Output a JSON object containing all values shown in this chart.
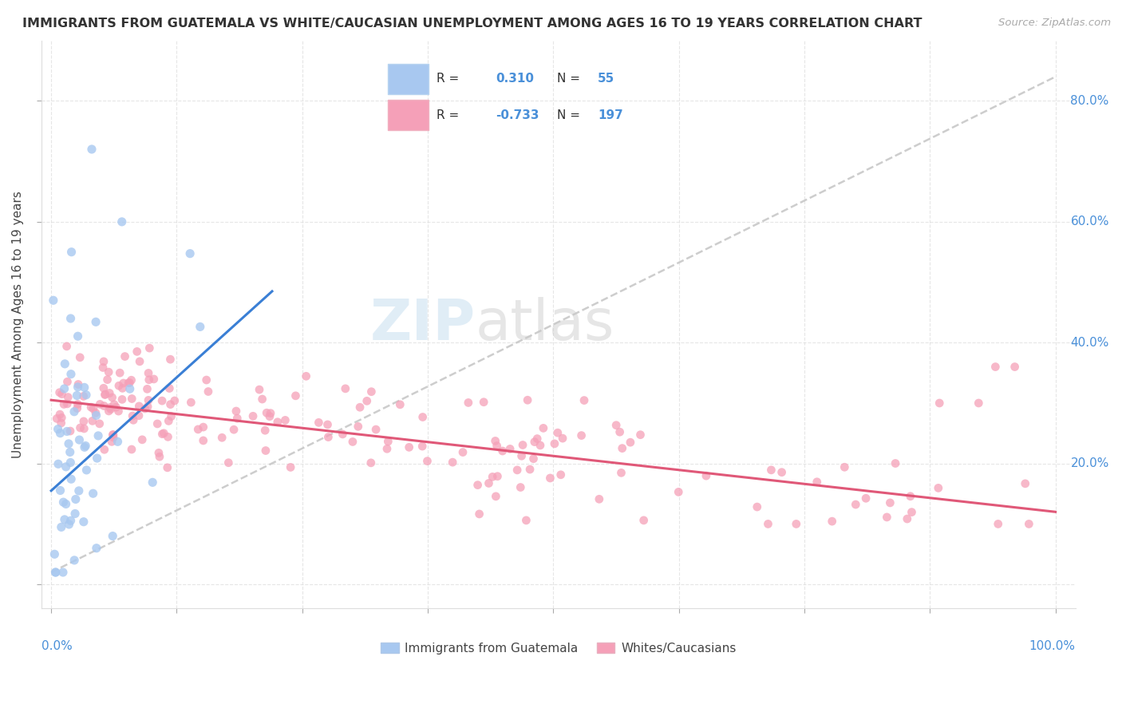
{
  "title": "IMMIGRANTS FROM GUATEMALA VS WHITE/CAUCASIAN UNEMPLOYMENT AMONG AGES 16 TO 19 YEARS CORRELATION CHART",
  "source": "Source: ZipAtlas.com",
  "ylabel": "Unemployment Among Ages 16 to 19 years",
  "legend1_r": "0.310",
  "legend1_n": "55",
  "legend2_r": "-0.733",
  "legend2_n": "197",
  "watermark_zip": "ZIP",
  "watermark_atlas": "atlas",
  "blue_color": "#a8c8f0",
  "pink_color": "#f5a0b8",
  "blue_line_color": "#3a7fd5",
  "pink_line_color": "#e05878",
  "gray_dash_color": "#c8c8c8",
  "background_color": "#ffffff",
  "grid_color": "#e0e0e0",
  "axis_label_color": "#4a90d9",
  "text_color": "#444444",
  "ytick_color": "#4a90d9",
  "title_color": "#333333",
  "source_color": "#aaaaaa"
}
